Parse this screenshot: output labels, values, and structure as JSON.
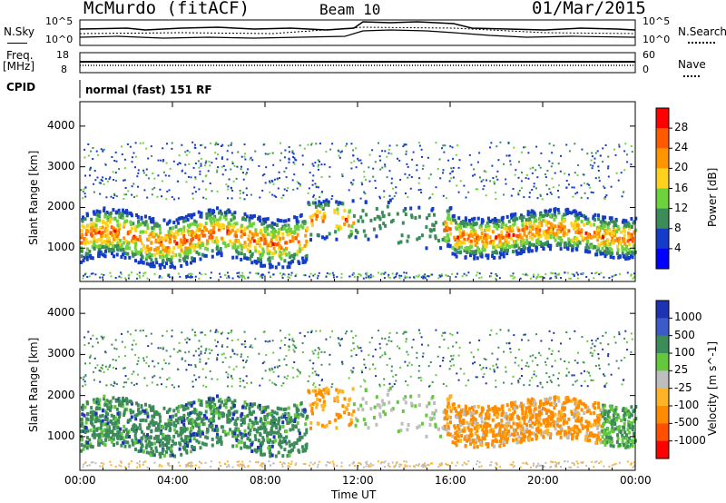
{
  "header": {
    "station": "McMurdo (fitACF)",
    "beam": "Beam 10",
    "date": "01/Mar/2015"
  },
  "noise_panel": {
    "left_label": "N.Sky",
    "right_label": "N.Search",
    "left_ticks": [
      "10^5",
      "10^0"
    ],
    "right_ticks": [
      "10^5",
      "10^0"
    ]
  },
  "freq_panel": {
    "left_label_1": "Freq.",
    "left_label_2": "[MHz]",
    "right_label": "Nave",
    "left_ticks": [
      "18",
      "8"
    ],
    "right_ticks": [
      "60",
      "0"
    ]
  },
  "cpid_panel": {
    "label": "CPID",
    "text": "normal (fast) 151 RF"
  },
  "chart_data": [
    {
      "type": "heatmap",
      "name": "power",
      "ylabel": "Slant Range [km]",
      "yticks": [
        1000,
        2000,
        3000,
        4000
      ],
      "ylim": [
        180,
        4600
      ],
      "xlim": [
        0,
        24
      ],
      "colorbar_label": "Power [dB]",
      "colorbar_ticks": [
        "28",
        "24",
        "20",
        "16",
        "12",
        "8",
        "4"
      ],
      "colorbar_colors": [
        "#ff0000",
        "#ff5a00",
        "#ff9600",
        "#ffd21e",
        "#6ed23c",
        "#3c8c5a",
        "#143cc8",
        "#0000ff"
      ],
      "colorbar_range": [
        0,
        32
      ]
    },
    {
      "type": "heatmap",
      "name": "velocity",
      "ylabel": "Slant Range [km]",
      "yticks": [
        1000,
        2000,
        3000,
        4000
      ],
      "ylim": [
        180,
        4600
      ],
      "xlim": [
        0,
        24
      ],
      "colorbar_label": "Velocity [m s^-1]",
      "colorbar_ticks": [
        "1000",
        "500",
        "100",
        "25",
        "-25",
        "-100",
        "-500",
        "-1000"
      ],
      "colorbar_colors": [
        "#1e32b4",
        "#3c5ac8",
        "#3c8c5a",
        "#64c83c",
        "#bebebe",
        "#ffb428",
        "#ff8c00",
        "#ff5000",
        "#ff0000"
      ]
    }
  ],
  "xaxis": {
    "ticks": [
      "00:00",
      "04:00",
      "08:00",
      "12:00",
      "16:00",
      "20:00",
      "00:00"
    ],
    "label": "Time UT"
  }
}
